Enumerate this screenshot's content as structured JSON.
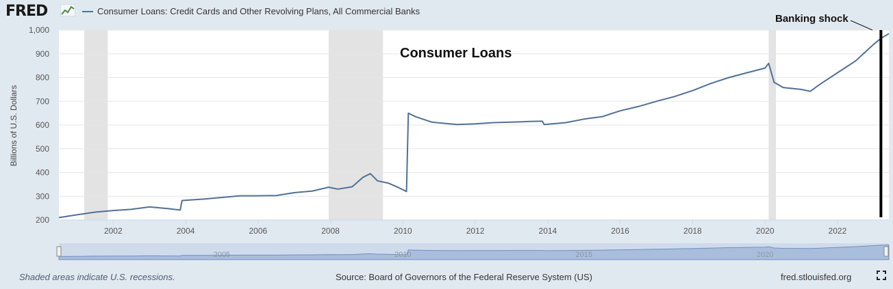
{
  "header": {
    "logo_text": "FRED",
    "legend_label": "Consumer Loans: Credit Cards and Other Revolving Plans, All Commercial Banks"
  },
  "annotations": {
    "inner_title": "Consumer Loans",
    "event_label": "Banking shock"
  },
  "footer": {
    "note": "Shaded areas indicate U.S. recessions.",
    "source": "Source: Board of Governors of the Federal Reserve System (US)",
    "site": "fred.stlouisfed.org"
  },
  "colors": {
    "series": "#4f6f96",
    "recession": "#e3e3e3",
    "background": "#e1e9f0",
    "plot_background": "#ffffff",
    "navigator_fill": "#a9bedd",
    "event_line": "#000000"
  },
  "icons": {
    "expand": "expand-icon",
    "chart_logo": "chart-line-icon"
  },
  "navigator": {
    "labels": [
      {
        "year": 2005,
        "text": "2005"
      },
      {
        "year": 2010,
        "text": "2010"
      },
      {
        "year": 2015,
        "text": "2015"
      },
      {
        "year": 2020,
        "text": "2020"
      }
    ]
  },
  "chart_data": {
    "type": "line",
    "title": "",
    "xlabel": "",
    "ylabel": "Billions of U.S. Dollars",
    "xlim": [
      2000.5,
      2023.42
    ],
    "ylim": [
      200,
      1000
    ],
    "yticks": [
      200,
      300,
      400,
      500,
      600,
      700,
      800,
      900,
      1000
    ],
    "ytick_labels": [
      "200",
      "300",
      "400",
      "500",
      "600",
      "700",
      "800",
      "900",
      "1,000"
    ],
    "xticks": [
      2002,
      2004,
      2006,
      2008,
      2010,
      2012,
      2014,
      2016,
      2018,
      2020,
      2022
    ],
    "xtick_labels": [
      "2002",
      "2004",
      "2006",
      "2008",
      "2010",
      "2012",
      "2014",
      "2016",
      "2018",
      "2020",
      "2022"
    ],
    "grid": true,
    "recessions": [
      [
        2001.2,
        2001.85
      ],
      [
        2007.95,
        2009.45
      ],
      [
        2020.1,
        2020.3
      ]
    ],
    "event_line_x": 2023.2,
    "series": [
      {
        "name": "Consumer Loans: Credit Cards and Other Revolving Plans, All Commercial Banks",
        "x": [
          2000.5,
          2001.0,
          2001.5,
          2002.0,
          2002.5,
          2003.0,
          2003.5,
          2003.85,
          2003.9,
          2004.5,
          2005.0,
          2005.5,
          2006.0,
          2006.5,
          2007.0,
          2007.5,
          2007.95,
          2008.2,
          2008.6,
          2008.9,
          2009.1,
          2009.3,
          2009.6,
          2009.9,
          2010.1,
          2010.15,
          2010.35,
          2010.8,
          2011.5,
          2012.0,
          2012.5,
          2013.0,
          2013.5,
          2013.85,
          2013.9,
          2014.5,
          2015.0,
          2015.5,
          2016.0,
          2016.5,
          2017.0,
          2017.5,
          2018.0,
          2018.5,
          2019.0,
          2019.5,
          2020.0,
          2020.1,
          2020.25,
          2020.5,
          2021.0,
          2021.25,
          2021.5,
          2022.0,
          2022.5,
          2023.0,
          2023.2,
          2023.42
        ],
        "values": [
          210,
          222,
          233,
          240,
          245,
          255,
          248,
          242,
          282,
          288,
          295,
          302,
          302,
          303,
          315,
          322,
          338,
          330,
          340,
          380,
          395,
          365,
          355,
          335,
          320,
          650,
          635,
          612,
          602,
          605,
          610,
          612,
          615,
          616,
          602,
          610,
          625,
          635,
          660,
          678,
          700,
          720,
          745,
          775,
          800,
          820,
          840,
          860,
          780,
          758,
          750,
          742,
          770,
          820,
          870,
          940,
          965,
          985
        ]
      }
    ]
  }
}
